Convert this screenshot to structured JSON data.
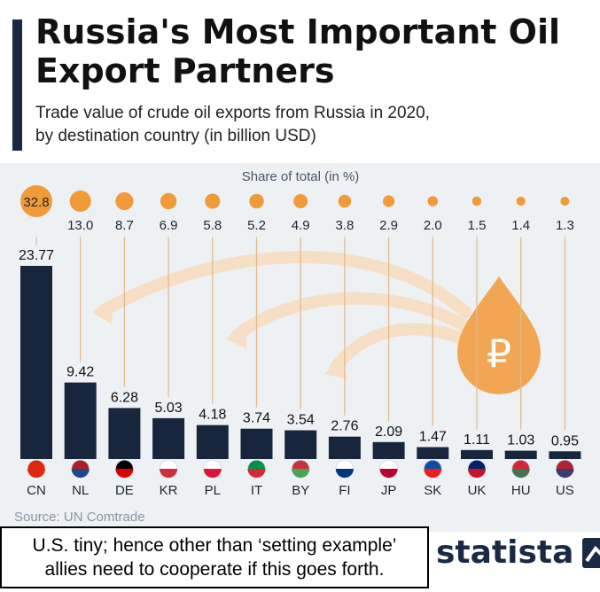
{
  "header": {
    "title_line1": "Russia's Most Important Oil",
    "title_line2": "Export Partners",
    "subtitle_line1": "Trade value of crude oil exports from Russia in 2020,",
    "subtitle_line2": "by destination country (in billion USD)"
  },
  "chart_data": {
    "type": "bar",
    "title": "Russia's Most Important Oil Export Partners",
    "subtitle": "Trade value of crude oil exports from Russia in 2020, by destination country (in billion USD)",
    "categories": [
      "CN",
      "NL",
      "DE",
      "KR",
      "PL",
      "IT",
      "BY",
      "FI",
      "JP",
      "SK",
      "UK",
      "HU",
      "US"
    ],
    "values": [
      23.77,
      9.42,
      6.28,
      5.03,
      4.18,
      3.74,
      3.54,
      2.76,
      2.09,
      1.47,
      1.11,
      1.03,
      0.95
    ],
    "value_labels": [
      "23.77",
      "9.42",
      "6.28",
      "5.03",
      "4.18",
      "3.74",
      "3.54",
      "2.76",
      "2.09",
      "1.47",
      "1.11",
      "1.03",
      "0.95"
    ],
    "share_label": "Share of total (in %)",
    "shares": [
      32.8,
      13.0,
      8.7,
      6.9,
      5.8,
      5.2,
      4.9,
      3.8,
      2.9,
      2.0,
      1.5,
      1.4,
      1.3
    ],
    "share_labels": [
      "32.8",
      "13.0",
      "8.7",
      "6.9",
      "5.8",
      "5.2",
      "4.9",
      "3.8",
      "2.9",
      "2.0",
      "1.5",
      "1.4",
      "1.3"
    ],
    "ylim": [
      0,
      23.77
    ],
    "unit": "billion USD",
    "icon_symbol": "₽"
  },
  "colors": {
    "bar": "#17253d",
    "bubble": "#f19a38",
    "drop": "#f2a654",
    "arrow": "#f6dfc4",
    "panel": "#eef1f4"
  },
  "source": "Source: UN Comtrade",
  "note": {
    "line1": "U.S. tiny; hence other than ‘setting example’",
    "line2": "allies need to cooperate if this goes forth."
  },
  "logo": {
    "text": "statista"
  }
}
